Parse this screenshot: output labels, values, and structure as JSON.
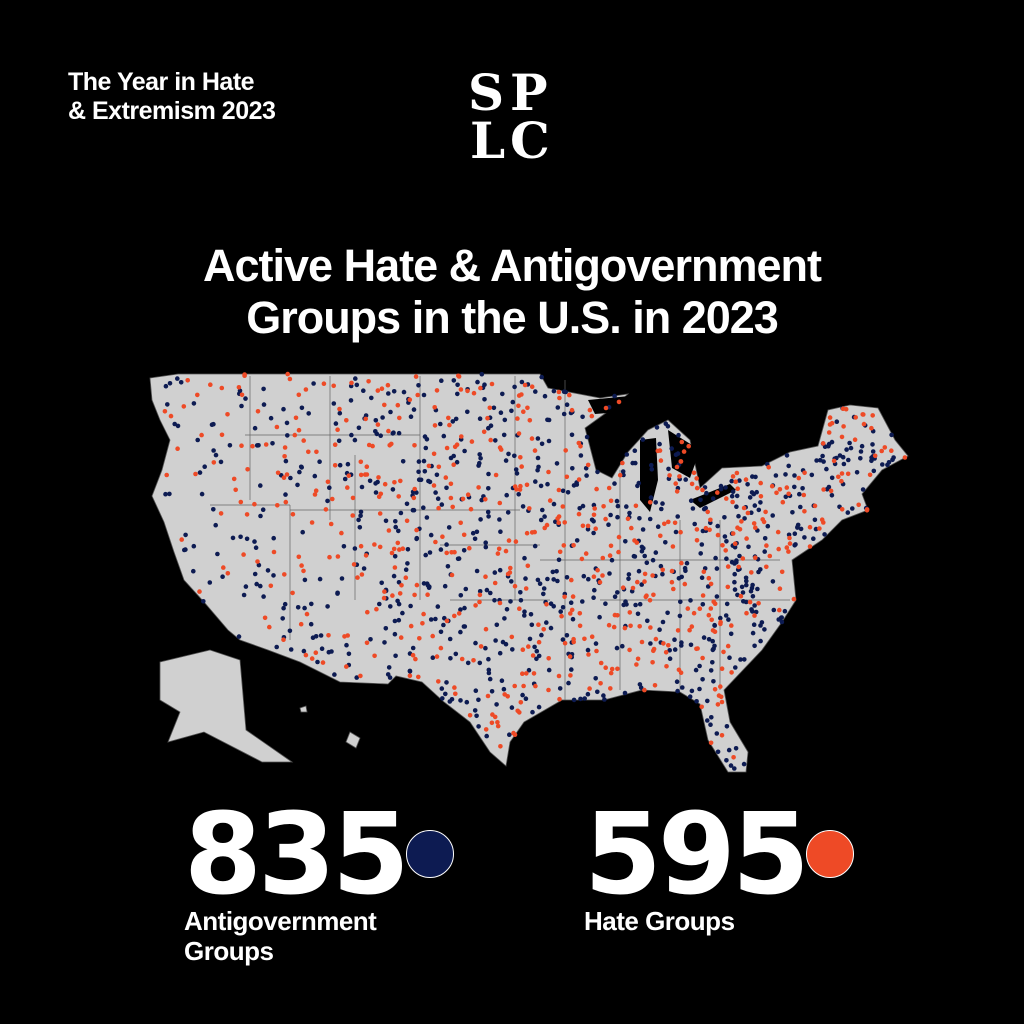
{
  "header": {
    "kicker_line1": "The Year in Hate",
    "kicker_line2": "& Extremism 2023",
    "logo_text": "SPLC"
  },
  "title": {
    "line1": "Active Hate & Antigovernment",
    "line2": "Groups in the U.S. in 2023"
  },
  "stats": [
    {
      "value": "835",
      "label_line1": "Antigovernment",
      "label_line2": "Groups",
      "color": "#0d1b52"
    },
    {
      "value": "595",
      "label_line1": "Hate Groups",
      "label_line2": "",
      "color": "#ee4a26"
    }
  ],
  "map": {
    "land_color": "#d0d0d0",
    "antigovernment_count": 835,
    "hate_count": 595
  }
}
